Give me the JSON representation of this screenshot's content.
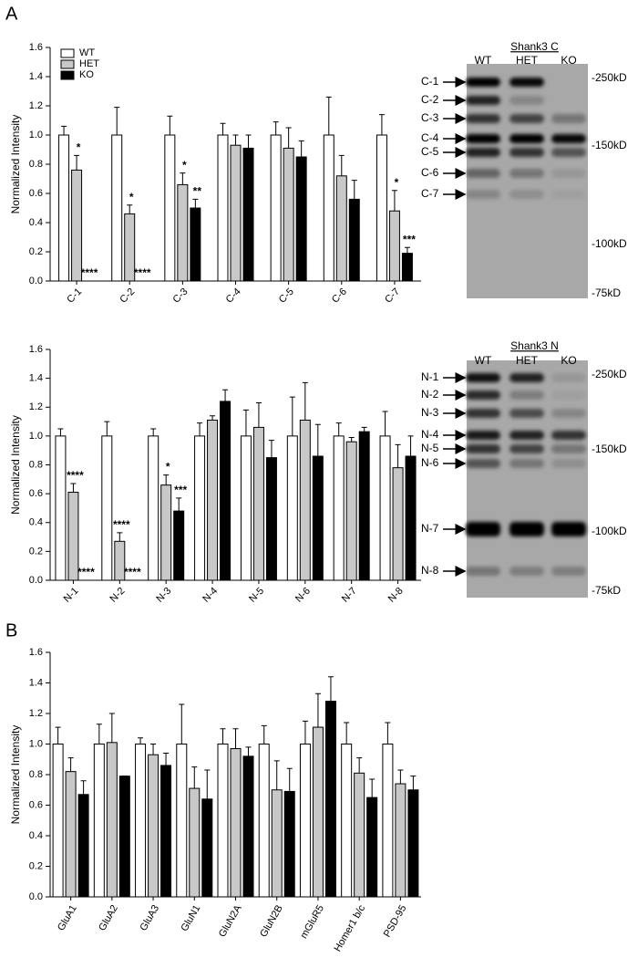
{
  "panels": [
    "A",
    "B"
  ],
  "chart_data": [
    {
      "type": "bar",
      "ylabel": "Normalized Intensity",
      "categories": [
        "C-1",
        "C-2",
        "C-3",
        "C-4",
        "C-5",
        "C-6",
        "C-7"
      ],
      "series": [
        {
          "name": "WT",
          "color": "#ffffff",
          "values": [
            1.0,
            1.0,
            1.0,
            1.0,
            1.0,
            1.0,
            1.0
          ],
          "errors": [
            0.06,
            0.19,
            0.13,
            0.08,
            0.09,
            0.26,
            0.14
          ],
          "annotations": [
            null,
            null,
            null,
            null,
            null,
            null,
            null
          ]
        },
        {
          "name": "HET",
          "color": "#c8c8c8",
          "values": [
            0.76,
            0.46,
            0.66,
            0.93,
            0.91,
            0.72,
            0.48
          ],
          "errors": [
            0.1,
            0.06,
            0.08,
            0.07,
            0.14,
            0.14,
            0.14
          ],
          "annotations": [
            "*",
            "*",
            "*",
            null,
            null,
            null,
            "*"
          ]
        },
        {
          "name": "KO",
          "color": "#000000",
          "values": [
            0,
            0,
            0.5,
            0.91,
            0.85,
            0.56,
            0.19
          ],
          "errors": [
            0,
            0,
            0.06,
            0.09,
            0.11,
            0.13,
            0.04
          ],
          "annotations": [
            "****",
            "****",
            "**",
            null,
            null,
            null,
            "***"
          ]
        }
      ],
      "ylim": [
        0,
        1.6
      ],
      "yticks": [
        {
          "value": 0,
          "label": "0.0"
        },
        0.2,
        0.4,
        0.6,
        0.8,
        {
          "value": 1,
          "label": "1.0"
        },
        1.2,
        1.4,
        1.6
      ],
      "legend": "top-left"
    },
    {
      "type": "bar",
      "ylabel": "Normalized Intensity",
      "categories": [
        "N-1",
        "N-2",
        "N-3",
        "N-4",
        "N-5",
        "N-6",
        "N-7",
        "N-8"
      ],
      "series": [
        {
          "color": "#ffffff",
          "values": [
            1.0,
            1.0,
            1.0,
            1.0,
            1.0,
            1.0,
            1.0,
            1.0
          ],
          "errors": [
            0.05,
            0.1,
            0.05,
            0.09,
            0.18,
            0.27,
            0.09,
            0.17
          ],
          "annotations": [
            null,
            null,
            null,
            null,
            null,
            null,
            null,
            null
          ]
        },
        {
          "color": "#c8c8c8",
          "values": [
            0.61,
            0.27,
            0.66,
            1.11,
            1.06,
            1.11,
            0.96,
            0.78
          ],
          "errors": [
            0.06,
            0.06,
            0.07,
            0.03,
            0.17,
            0.26,
            0.03,
            0.16
          ],
          "annotations": [
            "****",
            "****",
            "*",
            null,
            null,
            null,
            null,
            null
          ]
        },
        {
          "color": "#000000",
          "values": [
            0,
            0,
            0.48,
            1.24,
            0.85,
            0.86,
            1.03,
            0.86
          ],
          "errors": [
            0,
            0,
            0.09,
            0.08,
            0.12,
            0.22,
            0.03,
            0.14
          ],
          "annotations": [
            "****",
            "****",
            "***",
            null,
            null,
            null,
            null,
            null
          ]
        }
      ],
      "ylim": [
        0,
        1.6
      ],
      "yticks": [
        {
          "value": 0,
          "label": "0.0"
        },
        0.2,
        0.4,
        0.6,
        0.8,
        {
          "value": 1,
          "label": "1.0"
        },
        1.2,
        1.4,
        1.6
      ]
    },
    {
      "type": "bar",
      "ylabel": "Normalized Intensity",
      "categories": [
        "GluA1",
        "GluA2",
        "GluA3",
        "GluN1",
        "GluN2A",
        "GluN2B",
        "mGluR5",
        "Homer1 b/c",
        "PSD-95"
      ],
      "series": [
        {
          "color": "#ffffff",
          "values": [
            1.0,
            1.0,
            1.0,
            1.0,
            1.0,
            1.0,
            1.0,
            1.0,
            1.0
          ],
          "errors": [
            0.11,
            0.13,
            0.04,
            0.26,
            0.1,
            0.12,
            0.15,
            0.14,
            0.14
          ]
        },
        {
          "color": "#c8c8c8",
          "values": [
            0.82,
            1.01,
            0.93,
            0.71,
            0.97,
            0.7,
            1.11,
            0.81,
            0.74
          ],
          "errors": [
            0.09,
            0.19,
            0.07,
            0.14,
            0.13,
            0.19,
            0.22,
            0.1,
            0.09
          ]
        },
        {
          "color": "#000000",
          "values": [
            0.67,
            0.79,
            0.86,
            0.64,
            0.92,
            0.69,
            1.28,
            0.65,
            0.7
          ],
          "errors": [
            0.09,
            0,
            0.08,
            0.19,
            0.06,
            0.15,
            0.16,
            0.12,
            0.09
          ]
        }
      ],
      "ylim": [
        0,
        1.6
      ],
      "yticks": [
        {
          "value": 0,
          "label": "0.0"
        },
        0.2,
        0.4,
        0.6,
        0.8,
        {
          "value": 1,
          "label": "1.0"
        },
        1.2,
        1.4,
        1.6
      ]
    }
  ],
  "blots": [
    {
      "title": "Shank3 C",
      "lanes": [
        "WT",
        "HET",
        "KO"
      ],
      "bands": [
        "C-1",
        "C-2",
        "C-3",
        "C-4",
        "C-5",
        "C-6",
        "C-7"
      ],
      "markers": [
        "-250kD",
        "-150kD",
        "-100kD",
        "-75kD"
      ]
    },
    {
      "title": "Shank3 N",
      "lanes": [
        "WT",
        "HET",
        "KO"
      ],
      "bands": [
        "N-1",
        "N-2",
        "N-3",
        "N-4",
        "N-5",
        "N-6",
        "N-7",
        "N-8"
      ],
      "markers": [
        "-250kD",
        "-150kD",
        "-100kD",
        "-75kD"
      ]
    }
  ]
}
